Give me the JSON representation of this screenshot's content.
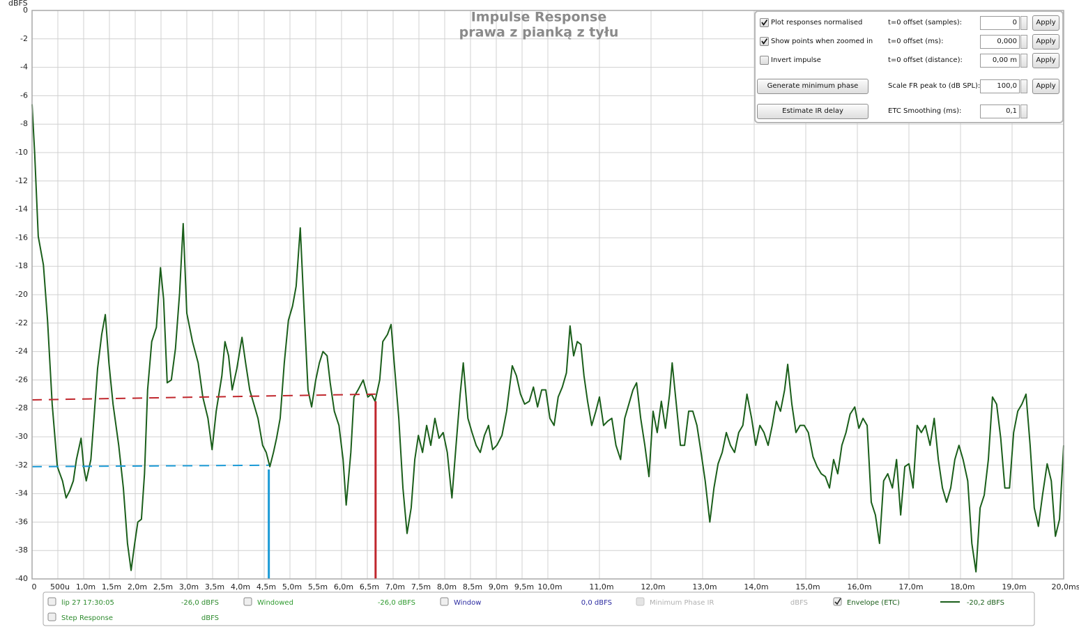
{
  "chart_data": {
    "type": "line",
    "title": "Impulse Response",
    "subtitle": "prawa z pianką z tyłu",
    "y_label": "dBFS",
    "xlim": [
      0,
      20
    ],
    "ylim": [
      -40,
      0
    ],
    "grid": true,
    "xticks": [
      0,
      {
        "value": 0.5,
        "label": "500u"
      },
      {
        "value": 1,
        "label": "1,0m"
      },
      {
        "value": 1.5,
        "label": "1,5m"
      },
      {
        "value": 2,
        "label": "2,0m"
      },
      {
        "value": 2.5,
        "label": "2,5m"
      },
      {
        "value": 3,
        "label": "3,0m"
      },
      {
        "value": 3.5,
        "label": "3,5m"
      },
      {
        "value": 4,
        "label": "4,0m"
      },
      {
        "value": 4.5,
        "label": "4,5m"
      },
      {
        "value": 5,
        "label": "5,0m"
      },
      {
        "value": 5.5,
        "label": "5,5m"
      },
      {
        "value": 6,
        "label": "6,0m"
      },
      {
        "value": 6.5,
        "label": "6,5m"
      },
      {
        "value": 7,
        "label": "7,0m"
      },
      {
        "value": 7.5,
        "label": "7,5m"
      },
      {
        "value": 8,
        "label": "8,0m"
      },
      {
        "value": 8.5,
        "label": "8,5m"
      },
      {
        "value": 9,
        "label": "9,0m"
      },
      {
        "value": 9.5,
        "label": "9,5m"
      },
      {
        "value": 10,
        "label": "10,0m"
      },
      {
        "value": 11,
        "label": "11,0m"
      },
      {
        "value": 12,
        "label": "12,0m"
      },
      {
        "value": 13,
        "label": "13,0m"
      },
      {
        "value": 14,
        "label": "14,0m"
      },
      {
        "value": 15,
        "label": "15,0m"
      },
      {
        "value": 16,
        "label": "16,0m"
      },
      {
        "value": 17,
        "label": "17,0m"
      },
      {
        "value": 18,
        "label": "18,0m"
      },
      {
        "value": 19,
        "label": "19,0m"
      },
      {
        "value": 20,
        "label": "20,0ms"
      }
    ],
    "yticks": [
      0,
      -2,
      -4,
      -6,
      -8,
      -10,
      -12,
      -14,
      -16,
      -18,
      -20,
      -22,
      -24,
      -26,
      -28,
      -30,
      -32,
      -34,
      -36,
      -38,
      -40
    ],
    "series": [
      {
        "color": "#1a5e1a",
        "width": 2,
        "dash": false,
        "x": [
          0,
          0.05,
          0.12,
          0.22,
          0.3,
          0.39,
          0.49,
          0.54,
          0.59,
          0.66,
          0.73,
          0.8,
          0.86,
          0.95,
          1.0,
          1.05,
          1.14,
          1.2,
          1.27,
          1.35,
          1.42,
          1.49,
          1.57,
          1.68,
          1.77,
          1.85,
          1.92,
          1.99,
          2.05,
          2.12,
          2.18,
          2.24,
          2.32,
          2.41,
          2.49,
          2.55,
          2.62,
          2.7,
          2.78,
          2.86,
          2.93,
          3.0,
          3.11,
          3.22,
          3.31,
          3.41,
          3.49,
          3.57,
          3.68,
          3.74,
          3.81,
          3.88,
          3.97,
          4.07,
          4.14,
          4.22,
          4.3,
          4.38,
          4.47,
          4.54,
          4.61,
          4.68,
          4.74,
          4.81,
          4.89,
          4.97,
          5.05,
          5.12,
          5.2,
          5.27,
          5.35,
          5.42,
          5.5,
          5.57,
          5.64,
          5.72,
          5.78,
          5.86,
          5.95,
          6.03,
          6.09,
          6.18,
          6.24,
          6.32,
          6.42,
          6.51,
          6.58,
          6.65,
          6.74,
          6.8,
          6.89,
          6.96,
          7.03,
          7.11,
          7.19,
          7.27,
          7.35,
          7.42,
          7.49,
          7.57,
          7.65,
          7.73,
          7.81,
          7.89,
          7.97,
          8.05,
          8.14,
          8.22,
          8.3,
          8.36,
          8.45,
          8.53,
          8.61,
          8.69,
          8.77,
          8.85,
          8.93,
          9.01,
          9.11,
          9.2,
          9.31,
          9.39,
          9.47,
          9.55,
          9.64,
          9.72,
          9.8,
          9.88,
          9.96,
          10.04,
          10.12,
          10.2,
          10.28,
          10.36,
          10.43,
          10.5,
          10.57,
          10.64,
          10.7,
          10.77,
          10.85,
          10.93,
          11.0,
          11.08,
          11.16,
          11.24,
          11.32,
          11.41,
          11.49,
          11.57,
          11.65,
          11.72,
          11.8,
          11.88,
          11.96,
          12.04,
          12.12,
          12.2,
          12.28,
          12.36,
          12.41,
          12.49,
          12.57,
          12.65,
          12.73,
          12.81,
          12.89,
          12.97,
          13.05,
          13.14,
          13.22,
          13.3,
          13.38,
          13.46,
          13.54,
          13.62,
          13.7,
          13.78,
          13.86,
          13.95,
          14.03,
          14.11,
          14.19,
          14.27,
          14.35,
          14.43,
          14.51,
          14.59,
          14.65,
          14.73,
          14.81,
          14.89,
          14.97,
          15.05,
          15.14,
          15.22,
          15.3,
          15.38,
          15.46,
          15.54,
          15.62,
          15.7,
          15.78,
          15.86,
          15.95,
          16.03,
          16.11,
          16.19,
          16.27,
          16.35,
          16.43,
          16.51,
          16.59,
          16.68,
          16.76,
          16.84,
          16.92,
          17.0,
          17.08,
          17.16,
          17.24,
          17.32,
          17.41,
          17.49,
          17.57,
          17.65,
          17.73,
          17.81,
          17.89,
          17.97,
          18.05,
          18.14,
          18.22,
          18.3,
          18.38,
          18.46,
          18.54,
          18.62,
          18.7,
          18.78,
          18.86,
          18.95,
          19.03,
          19.11,
          19.19,
          19.27,
          19.35,
          19.43,
          19.51,
          19.59,
          19.68,
          19.76,
          19.84,
          19.92,
          20.0
        ],
        "values": [
          -6.6,
          -10.0,
          -15.9,
          -17.9,
          -21.8,
          -27.7,
          -32.1,
          -32.6,
          -33.1,
          -34.3,
          -33.8,
          -33.1,
          -31.6,
          -30.1,
          -32.1,
          -33.1,
          -31.6,
          -28.7,
          -25.2,
          -22.8,
          -21.4,
          -24.8,
          -27.7,
          -30.6,
          -33.6,
          -37.5,
          -39.4,
          -37.5,
          -36.0,
          -35.8,
          -32.6,
          -26.7,
          -23.3,
          -22.3,
          -18.1,
          -20.3,
          -26.2,
          -26.0,
          -23.8,
          -19.9,
          -15.0,
          -21.3,
          -23.3,
          -24.8,
          -27.2,
          -28.7,
          -30.9,
          -28.2,
          -25.7,
          -23.3,
          -24.3,
          -26.7,
          -25.2,
          -23.0,
          -24.8,
          -26.7,
          -27.7,
          -28.7,
          -30.6,
          -31.1,
          -32.1,
          -31.1,
          -30.1,
          -28.7,
          -24.8,
          -21.8,
          -20.8,
          -19.4,
          -15.3,
          -20.8,
          -26.7,
          -27.9,
          -26.0,
          -24.8,
          -24.0,
          -24.3,
          -26.2,
          -28.2,
          -29.2,
          -31.6,
          -34.8,
          -31.1,
          -27.2,
          -26.7,
          -26.0,
          -27.2,
          -27.0,
          -27.5,
          -26.0,
          -23.3,
          -22.8,
          -22.1,
          -25.2,
          -28.7,
          -33.6,
          -36.8,
          -35.0,
          -31.6,
          -29.9,
          -31.1,
          -29.2,
          -30.6,
          -28.7,
          -30.1,
          -29.7,
          -31.1,
          -34.3,
          -30.6,
          -27.0,
          -24.8,
          -28.7,
          -29.7,
          -30.6,
          -31.1,
          -29.9,
          -29.2,
          -30.9,
          -30.6,
          -29.9,
          -28.2,
          -25.0,
          -25.7,
          -27.0,
          -27.7,
          -27.5,
          -26.5,
          -27.9,
          -26.7,
          -26.7,
          -28.7,
          -29.2,
          -27.2,
          -26.5,
          -25.5,
          -22.2,
          -24.3,
          -23.3,
          -23.5,
          -25.7,
          -27.5,
          -29.2,
          -28.2,
          -27.2,
          -29.2,
          -28.9,
          -28.7,
          -30.6,
          -31.6,
          -28.7,
          -27.7,
          -26.7,
          -26.2,
          -28.7,
          -30.6,
          -32.8,
          -28.2,
          -29.7,
          -27.5,
          -29.4,
          -27.0,
          -24.8,
          -27.7,
          -30.6,
          -30.6,
          -28.2,
          -28.2,
          -29.2,
          -31.1,
          -33.1,
          -36.0,
          -33.6,
          -31.9,
          -31.1,
          -29.7,
          -30.6,
          -31.1,
          -29.7,
          -29.2,
          -27.0,
          -28.7,
          -30.6,
          -29.2,
          -29.7,
          -30.6,
          -29.2,
          -27.5,
          -28.2,
          -26.7,
          -24.9,
          -27.7,
          -29.7,
          -29.2,
          -29.2,
          -29.7,
          -31.4,
          -32.1,
          -32.6,
          -32.8,
          -33.6,
          -31.6,
          -32.6,
          -30.6,
          -29.7,
          -28.4,
          -27.9,
          -29.4,
          -28.7,
          -29.2,
          -34.6,
          -35.5,
          -37.5,
          -33.1,
          -32.6,
          -33.6,
          -31.6,
          -35.5,
          -32.1,
          -31.9,
          -33.6,
          -29.2,
          -29.7,
          -29.2,
          -30.6,
          -28.7,
          -31.6,
          -33.6,
          -34.6,
          -33.6,
          -31.6,
          -30.6,
          -31.6,
          -33.1,
          -37.5,
          -39.5,
          -35.0,
          -34.1,
          -31.6,
          -27.2,
          -27.7,
          -30.1,
          -33.6,
          -33.6,
          -29.7,
          -28.2,
          -27.7,
          -27.0,
          -30.6,
          -35.0,
          -36.3,
          -34.1,
          -31.9,
          -33.1,
          -37.0,
          -35.8,
          -30.6
        ]
      },
      {
        "color": "#c0272d",
        "width": 2,
        "dash": true,
        "x": [
          0,
          6.66
        ],
        "values": [
          -27.4,
          -27.0
        ]
      },
      {
        "color": "#c0272d",
        "width": 3,
        "dash": false,
        "x": [
          6.66,
          6.66
        ],
        "values": [
          -27.5,
          -40
        ]
      },
      {
        "color": "#1b9ad6",
        "width": 2,
        "dash": true,
        "x": [
          0,
          4.59
        ],
        "values": [
          -32.1,
          -32.0
        ]
      },
      {
        "color": "#1b9ad6",
        "width": 3,
        "dash": false,
        "x": [
          4.59,
          4.59
        ],
        "values": [
          -32.3,
          -40
        ]
      }
    ],
    "legend": [
      {
        "label": "lip 27 17:30:05",
        "value": "-26,0 dBFS",
        "color": "#2e8b2e",
        "checked": false,
        "enabled": true
      },
      {
        "label": "Windowed",
        "value": "-26,0 dBFS",
        "color": "#2e9a2e",
        "checked": false,
        "enabled": true
      },
      {
        "label": "Window",
        "value": "0,0 dBFS",
        "color": "#2a2aa0",
        "checked": false,
        "enabled": true
      },
      {
        "label": "Minimum Phase IR",
        "value": "dBFS",
        "color": "#b0b0b0",
        "checked": false,
        "enabled": false
      },
      {
        "label": "Envelope (ETC)",
        "value": "-20,2 dBFS",
        "color": "#1a5e1a",
        "checked": true,
        "enabled": true,
        "line_color": "#1a5e1a"
      },
      {
        "label": "Step Response",
        "value": "dBFS",
        "color": "#2e8b2e",
        "checked": false,
        "enabled": true
      }
    ]
  },
  "controls": {
    "options": [
      {
        "label": "Plot responses normalised",
        "checked": true
      },
      {
        "label": "Show points when zoomed in",
        "checked": true
      },
      {
        "label": "Invert impulse",
        "checked": false
      }
    ],
    "buttons": [
      "Generate minimum phase",
      "Estimate IR delay"
    ],
    "fields": [
      {
        "label": "t=0 offset (samples):",
        "value": "0",
        "action": "Apply"
      },
      {
        "label": "t=0 offset (ms):",
        "value": "0,000",
        "action": "Apply"
      },
      {
        "label": "t=0 offset (distance):",
        "value": "0,00 m",
        "action": "Apply"
      },
      {
        "label": "Scale FR peak to (dB SPL):",
        "value": "100,0",
        "action": "Apply"
      },
      {
        "label": "ETC Smoothing (ms):",
        "value": "0,1"
      }
    ]
  }
}
